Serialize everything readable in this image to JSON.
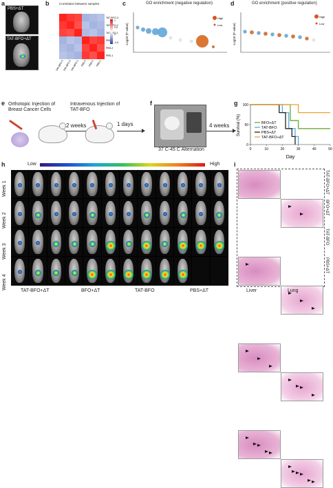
{
  "panels": {
    "a": {
      "label": "a",
      "top_text": "PBS+ΔT",
      "bottom_text": "TAT-BFO+ΔT"
    },
    "b": {
      "label": "b",
      "title": "Correlation between samples",
      "rows": [
        "TAT-BFO-3",
        "TAT-BFO-2",
        "TAT-BFO-1",
        "PBS-3",
        "PBS-2",
        "PBS-1"
      ],
      "cols": [
        "TAT-BFO-3",
        "TAT-BFO-2",
        "TAT-BFO-1",
        "PBS-3",
        "PBS-2",
        "PBS-1"
      ],
      "colorbar": [
        "1",
        "0.5",
        "0",
        "-0.5"
      ]
    },
    "c": {
      "label": "c",
      "title": "GO enrichment (negative regulation)",
      "ylabel": "-Log10 (P value)",
      "legend_title": "Ratio in study",
      "legend_high": "High",
      "legend_low": "Low",
      "yticks": [
        "5",
        "4",
        "3",
        "2",
        "1",
        "0"
      ]
    },
    "d": {
      "label": "d",
      "title": "GO enrichment (positive regulation)",
      "ylabel": "-Log10 (P value)",
      "legend_title": "Ratio in study",
      "legend_high": "High",
      "legend_low": "Low",
      "yticks": [
        "5",
        "4",
        "3",
        "2",
        "1",
        "0"
      ]
    },
    "e": {
      "label": "e",
      "step1": "Orthotopic Injection of Breast Cancer Cells",
      "arrow1": "2 weeks",
      "step2": "Intravenous Injection of TAT-BFO",
      "arrow2": "1 days"
    },
    "f": {
      "label": "f",
      "caption": "37 C-45 C Alternation",
      "arrow3": "4 weeks"
    },
    "g": {
      "label": "g",
      "ylabel": "Survival (%)",
      "xlabel": "Day",
      "legend": [
        "BFO+ΔT",
        "TAT-BFO",
        "PBS+ΔT",
        "TAT-BFO+ΔT"
      ]
    },
    "h": {
      "label": "h",
      "scale_low": "Low",
      "scale_high": "High",
      "weeks": [
        "Week 1",
        "Week 2",
        "Week 3",
        "Week 4"
      ],
      "groups": [
        "TAT-BFO+ΔT",
        "BFO+ΔT",
        "TAT-BFO",
        "PBS+ΔT"
      ]
    },
    "i": {
      "label": "i",
      "col_liver": "Liver",
      "col_lung": "Lung",
      "rows": [
        "TAT-BFO+ΔT",
        "BFO+ΔT",
        "TAT-BFO",
        "PBS+ΔT"
      ]
    }
  },
  "chart_data": [
    {
      "type": "line",
      "panel": "g",
      "xlabel": "Day",
      "ylabel": "Survival (%)",
      "xlim": [
        0,
        50
      ],
      "ylim": [
        0,
        100
      ],
      "xticks": [
        0,
        10,
        20,
        30,
        40,
        50
      ],
      "yticks": [
        0,
        50,
        100
      ],
      "series": [
        {
          "name": "BFO+ΔT",
          "color": "#6aaa3a",
          "x": [
            0,
            25,
            25,
            30,
            30,
            50
          ],
          "y": [
            100,
            100,
            60,
            60,
            40,
            40
          ]
        },
        {
          "name": "TAT-BFO",
          "color": "#5aaad8",
          "x": [
            0,
            20,
            20,
            24,
            24,
            28,
            28,
            30,
            30
          ],
          "y": [
            100,
            100,
            80,
            80,
            40,
            40,
            20,
            20,
            0
          ]
        },
        {
          "name": "PBS+ΔT",
          "color": "#222222",
          "x": [
            0,
            18,
            18,
            22,
            22,
            26,
            26,
            28,
            28
          ],
          "y": [
            100,
            100,
            80,
            80,
            40,
            40,
            20,
            20,
            0
          ]
        },
        {
          "name": "TAT-BFO+ΔT",
          "color": "#f0a030",
          "x": [
            0,
            30,
            30,
            50
          ],
          "y": [
            100,
            100,
            80,
            80
          ]
        }
      ]
    }
  ]
}
